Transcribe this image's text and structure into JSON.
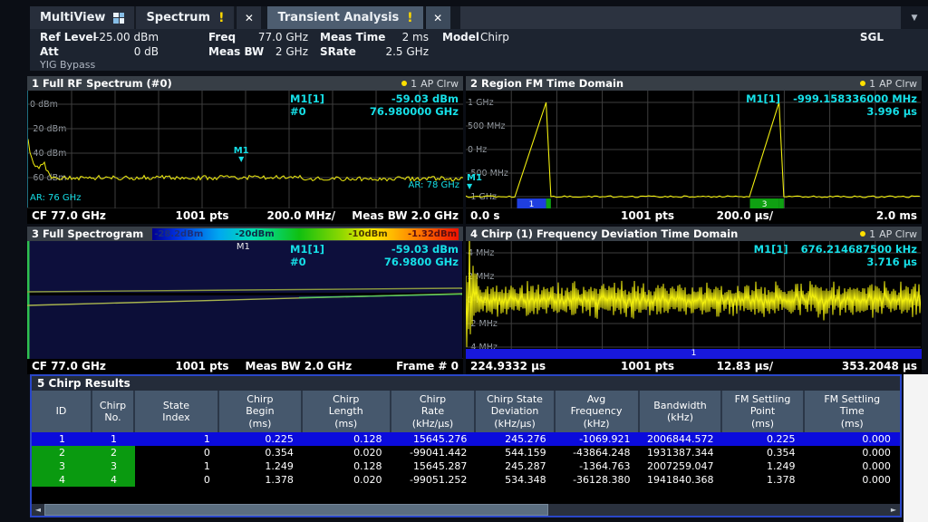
{
  "tabs": {
    "multiview": "MultiView",
    "spectrum": "Spectrum",
    "transient": "Transient Analysis",
    "alert": "!",
    "close": "✕",
    "dropdown": "▼"
  },
  "settings": {
    "fields": [
      {
        "label": "Ref Level",
        "value": "-25.00 dBm"
      },
      {
        "label": "Freq",
        "value": "77.0 GHz"
      },
      {
        "label": "Meas Time",
        "value": "2 ms"
      },
      {
        "label": "Model",
        "value": "Chirp"
      },
      {
        "label": "Att",
        "value": "0 dB"
      },
      {
        "label": "Meas BW",
        "value": "2 GHz"
      },
      {
        "label": "SRate",
        "value": "2.5 GHz"
      }
    ],
    "single_mode": "SGL",
    "yig": "YIG Bypass"
  },
  "colors": {
    "marker_cyan": "#16dfe7",
    "trace_yellow": "#f2ef0f",
    "selected_row_blue": "#0b0bdc",
    "chirp_green": "#0a9a10",
    "alert_yellow": "#ffd900"
  },
  "panels": {
    "p1": {
      "title": "1 Full RF Spectrum (#0)",
      "trace": "1",
      "trace_mode": "AP Clrw",
      "readout": [
        {
          "n": "M1[1]",
          "v": "-59.03 dBm"
        },
        {
          "n": "#0",
          "v": "76.980000 GHz"
        }
      ],
      "ylabels": [
        "0 dBm",
        "-20 dBm",
        "-40 dBm",
        "-60 dBm"
      ],
      "marker": "M1",
      "marker_tri": "▼",
      "ar_left": "AR: 76 GHz",
      "ar_right": "AR: 78 GHz",
      "footer": [
        "CF 77.0 GHz",
        "1001 pts",
        "200.0 MHz/",
        "Meas BW 2.0 GHz"
      ]
    },
    "p2": {
      "title": "2 Region FM Time Domain",
      "trace": "1",
      "trace_mode": "AP Clrw",
      "readout": [
        {
          "n": "M1[1]",
          "v": "-999.158336000 MHz"
        },
        {
          "n": "",
          "v": "3.996 µs"
        }
      ],
      "ylabels": [
        "1 GHz",
        "500 MHz",
        "0 Hz",
        "-500 MHz",
        "-1 GHz"
      ],
      "marker": "M1",
      "marker_tri": "▼",
      "segments": [
        {
          "start": 0.1125,
          "end": 0.1765,
          "color": "#1f3fe0",
          "label": "1"
        },
        {
          "start": 0.1765,
          "end": 0.187,
          "color": "#0fa012",
          "label": ""
        },
        {
          "start": 0.6245,
          "end": 0.6885,
          "color": "#0fa012",
          "label": "3"
        },
        {
          "start": 0.6885,
          "end": 0.699,
          "color": "#0fa012",
          "label": ""
        }
      ],
      "footer": [
        "0.0 s",
        "1001 pts",
        "200.0 µs/",
        "2.0 ms"
      ]
    },
    "p3": {
      "title": "3 Full Spectrogram",
      "colorbar": [
        "-28.2dBm",
        "-20dBm",
        "-10dBm",
        "-1.32dBm"
      ],
      "readout": [
        {
          "n": "M1[1]",
          "v": "-59.03 dBm"
        },
        {
          "n": "#0",
          "v": "76.9800 GHz"
        }
      ],
      "marker": "M1",
      "footer": [
        "CF 77.0 GHz",
        "1001 pts",
        "Meas BW 2.0 GHz",
        "Frame # 0"
      ]
    },
    "p4": {
      "title": "4 Chirp (1) Frequency Deviation Time Domain",
      "trace": "1",
      "trace_mode": "AP Clrw",
      "readout": [
        {
          "n": "M1[1]",
          "v": "676.214687500 kHz"
        },
        {
          "n": "",
          "v": "3.716 µs"
        }
      ],
      "ylabels": [
        "4 MHz",
        "2 MHz",
        "0 Hz",
        "-2 MHz",
        "-4 MHz"
      ],
      "bar_label": "1",
      "footer": [
        "224.9332 µs",
        "1001 pts",
        "12.83 µs/",
        "353.2048 µs"
      ]
    }
  },
  "results": {
    "title": "5 Chirp Results",
    "columns": [
      [
        "ID"
      ],
      [
        "Chirp",
        "No."
      ],
      [
        "State",
        "Index"
      ],
      [
        "Chirp",
        "Begin",
        "(ms)"
      ],
      [
        "Chirp",
        "Length",
        "(ms)"
      ],
      [
        "Chirp",
        "Rate",
        "(kHz/µs)"
      ],
      [
        "Chirp State",
        "Deviation",
        "(kHz/µs)"
      ],
      [
        "Avg",
        "Frequency",
        "(kHz)"
      ],
      [
        "Bandwidth",
        "(kHz)"
      ],
      [
        "FM Settling",
        "Point",
        "(ms)"
      ],
      [
        "FM Settling",
        "Time",
        "(ms)"
      ]
    ],
    "rows": [
      [
        "1",
        "1",
        "1",
        "0.225",
        "0.128",
        "15645.276",
        "245.276",
        "-1069.921",
        "2006844.572",
        "0.225",
        "0.000"
      ],
      [
        "2",
        "2",
        "0",
        "0.354",
        "0.020",
        "-99041.442",
        "544.159",
        "-43864.248",
        "1931387.344",
        "0.354",
        "0.000"
      ],
      [
        "3",
        "3",
        "1",
        "1.249",
        "0.128",
        "15645.287",
        "245.287",
        "-1364.763",
        "2007259.047",
        "1.249",
        "0.000"
      ],
      [
        "4",
        "4",
        "0",
        "1.378",
        "0.020",
        "-99051.252",
        "534.348",
        "-36128.380",
        "1941840.368",
        "1.378",
        "0.000"
      ]
    ]
  }
}
